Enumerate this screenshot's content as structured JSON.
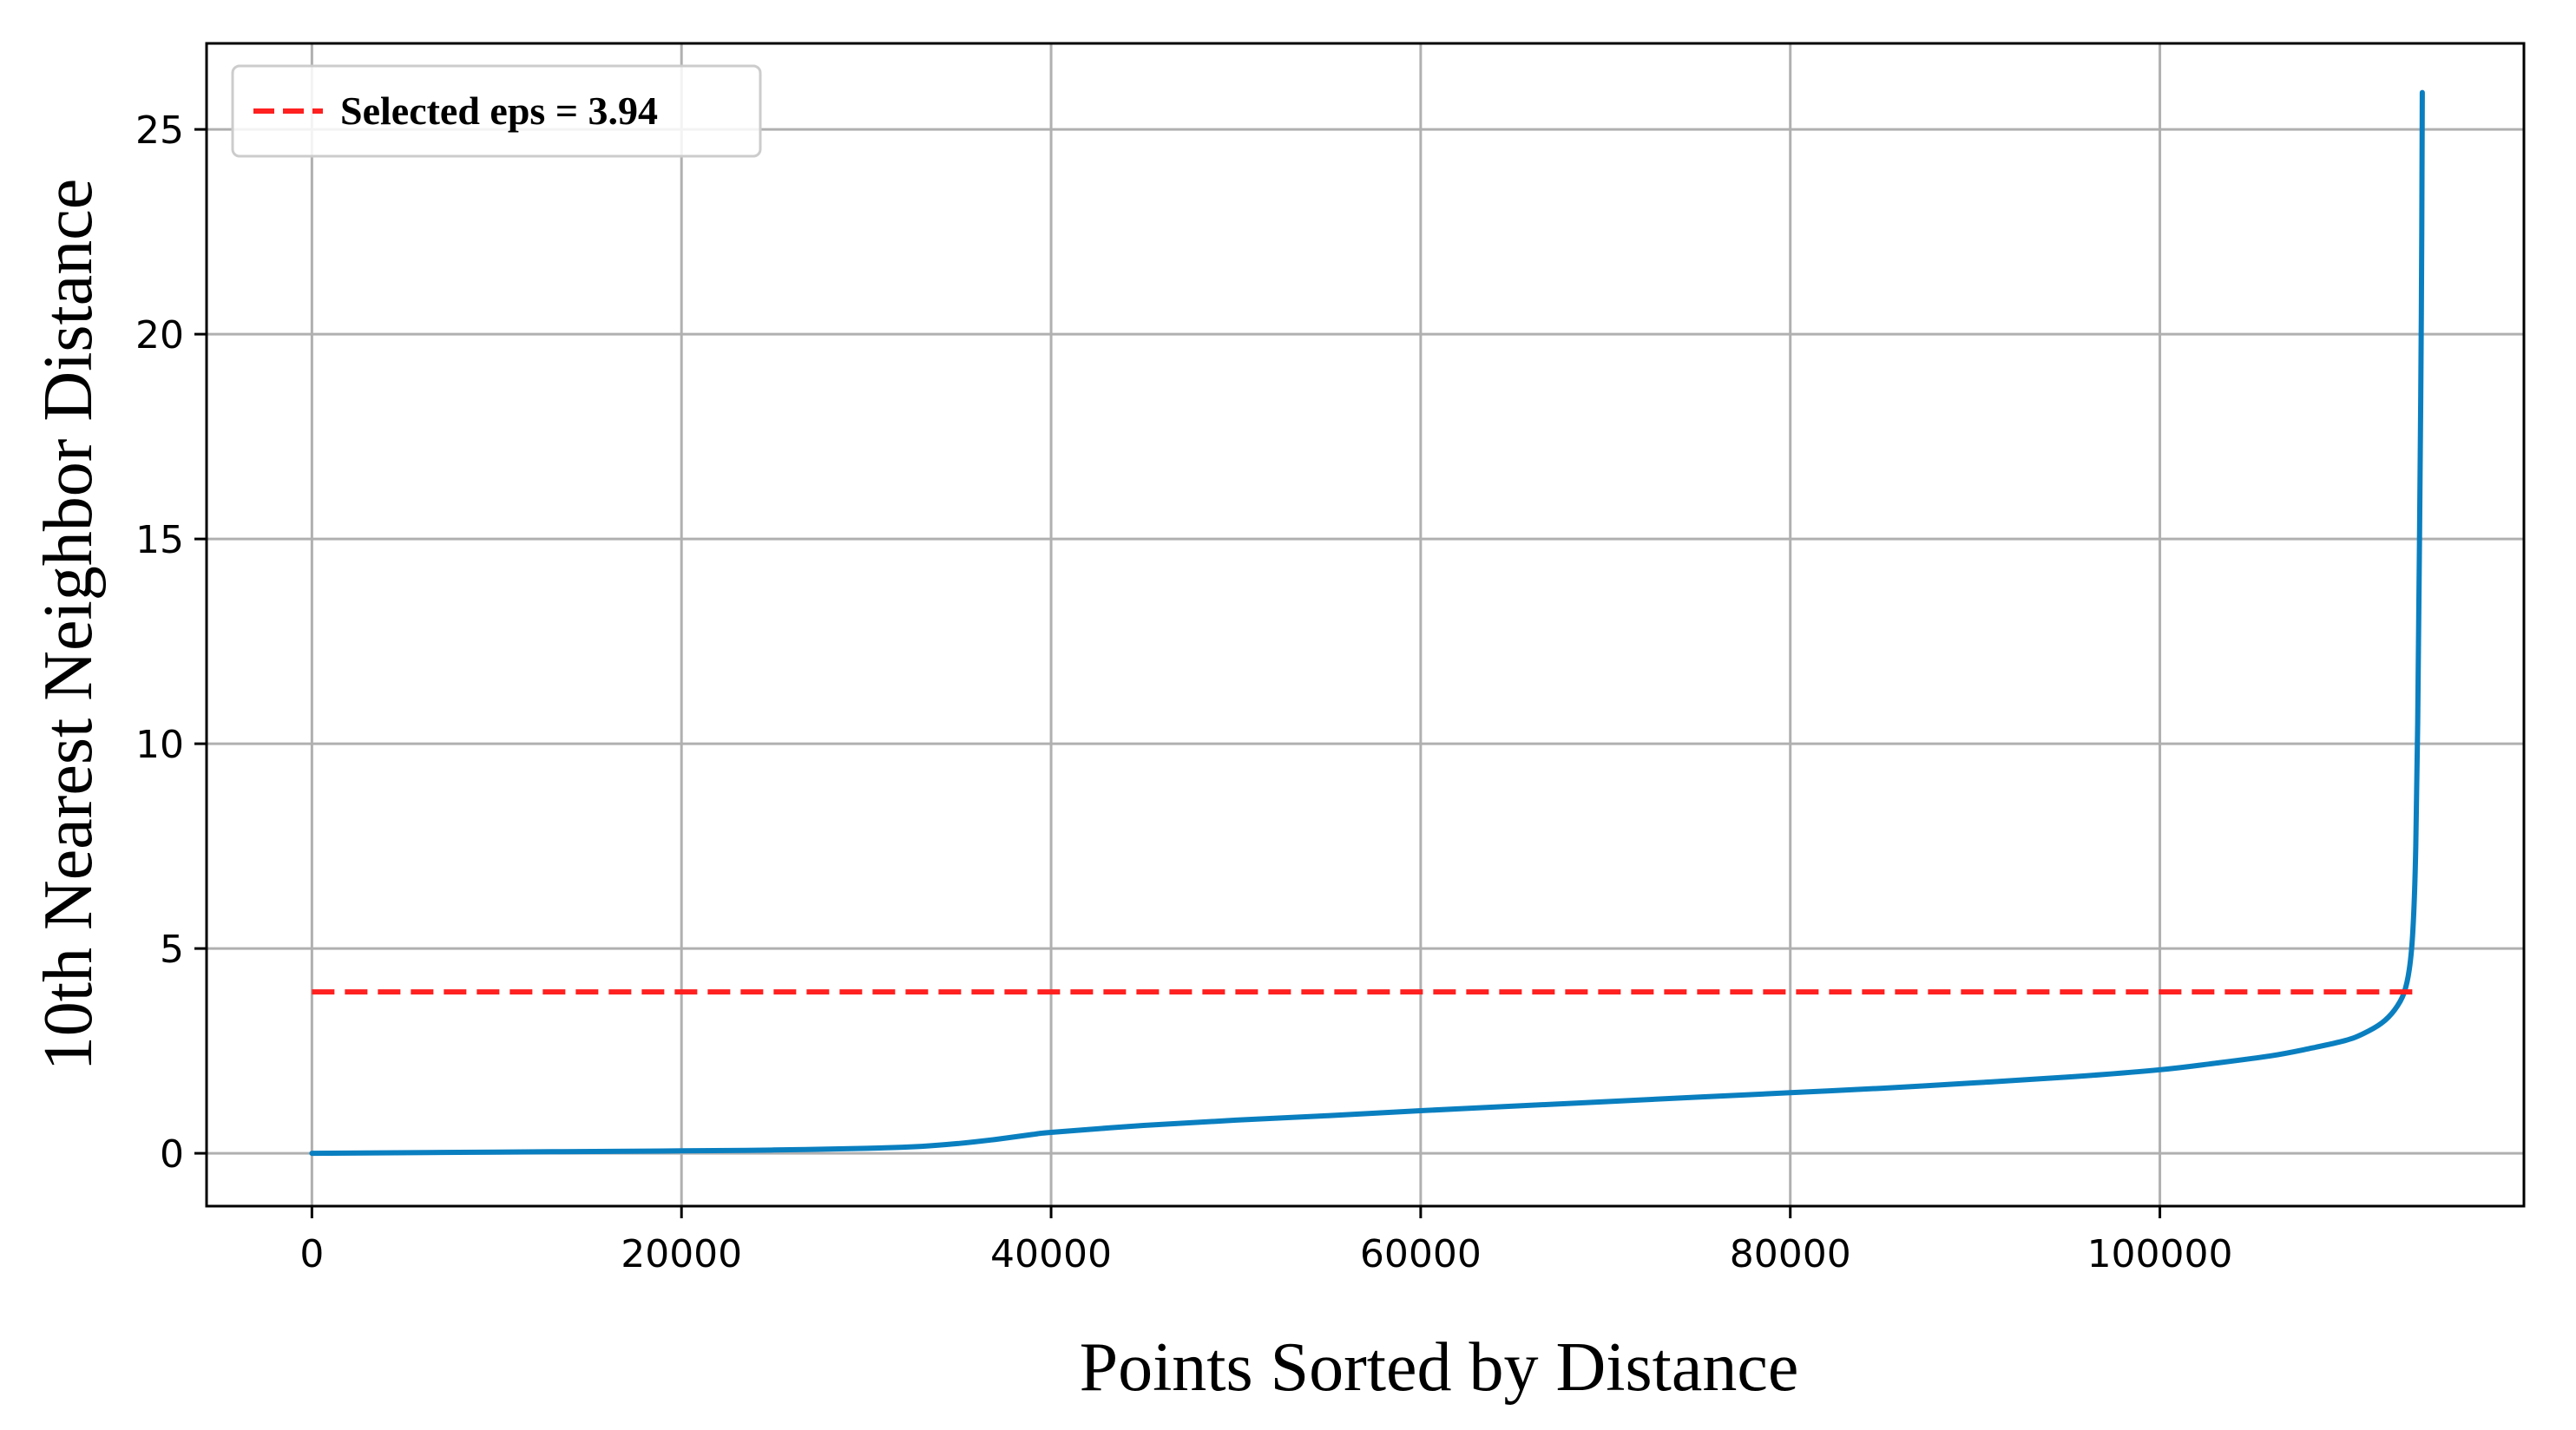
{
  "chart_data": {
    "type": "line",
    "title": "",
    "xlabel": "Points Sorted by Distance",
    "ylabel": "10th Nearest Neighbor Distance",
    "xlim": [
      -5700,
      119700
    ],
    "ylim": [
      -1.29,
      27.1
    ],
    "xticks": [
      0,
      20000,
      40000,
      60000,
      80000,
      100000
    ],
    "xtick_labels": [
      "0",
      "20000",
      "40000",
      "60000",
      "80000",
      "100000"
    ],
    "yticks": [
      0,
      5,
      10,
      15,
      20,
      25
    ],
    "ytick_labels": [
      "0",
      "5",
      "10",
      "15",
      "20",
      "25"
    ],
    "grid": true,
    "legend_position": "top-left",
    "series": [
      {
        "type": "line",
        "color": "#0a7fc0",
        "x": [
          0,
          10000,
          20000,
          25000,
          30000,
          33000,
          35000,
          37000,
          39000,
          40000,
          45000,
          50000,
          55000,
          60000,
          65000,
          70000,
          75000,
          80000,
          85000,
          90000,
          95000,
          100000,
          103000,
          106000,
          108000,
          110000,
          111000,
          112000,
          112700,
          113200,
          113500,
          113700,
          113850,
          113950,
          114050,
          114150,
          114200
        ],
        "y": [
          0.0,
          0.03,
          0.06,
          0.08,
          0.12,
          0.17,
          0.24,
          0.34,
          0.46,
          0.51,
          0.68,
          0.81,
          0.92,
          1.04,
          1.15,
          1.26,
          1.37,
          1.48,
          1.59,
          1.72,
          1.86,
          2.04,
          2.2,
          2.38,
          2.55,
          2.75,
          2.92,
          3.18,
          3.5,
          3.9,
          4.5,
          5.5,
          7.5,
          10.5,
          15.0,
          20.5,
          25.9
        ]
      },
      {
        "name": "Selected eps = 3.94",
        "type": "hline",
        "color": "#ff2020",
        "dash": "dashed",
        "y": 3.94,
        "x": [
          0,
          114200
        ]
      }
    ]
  }
}
